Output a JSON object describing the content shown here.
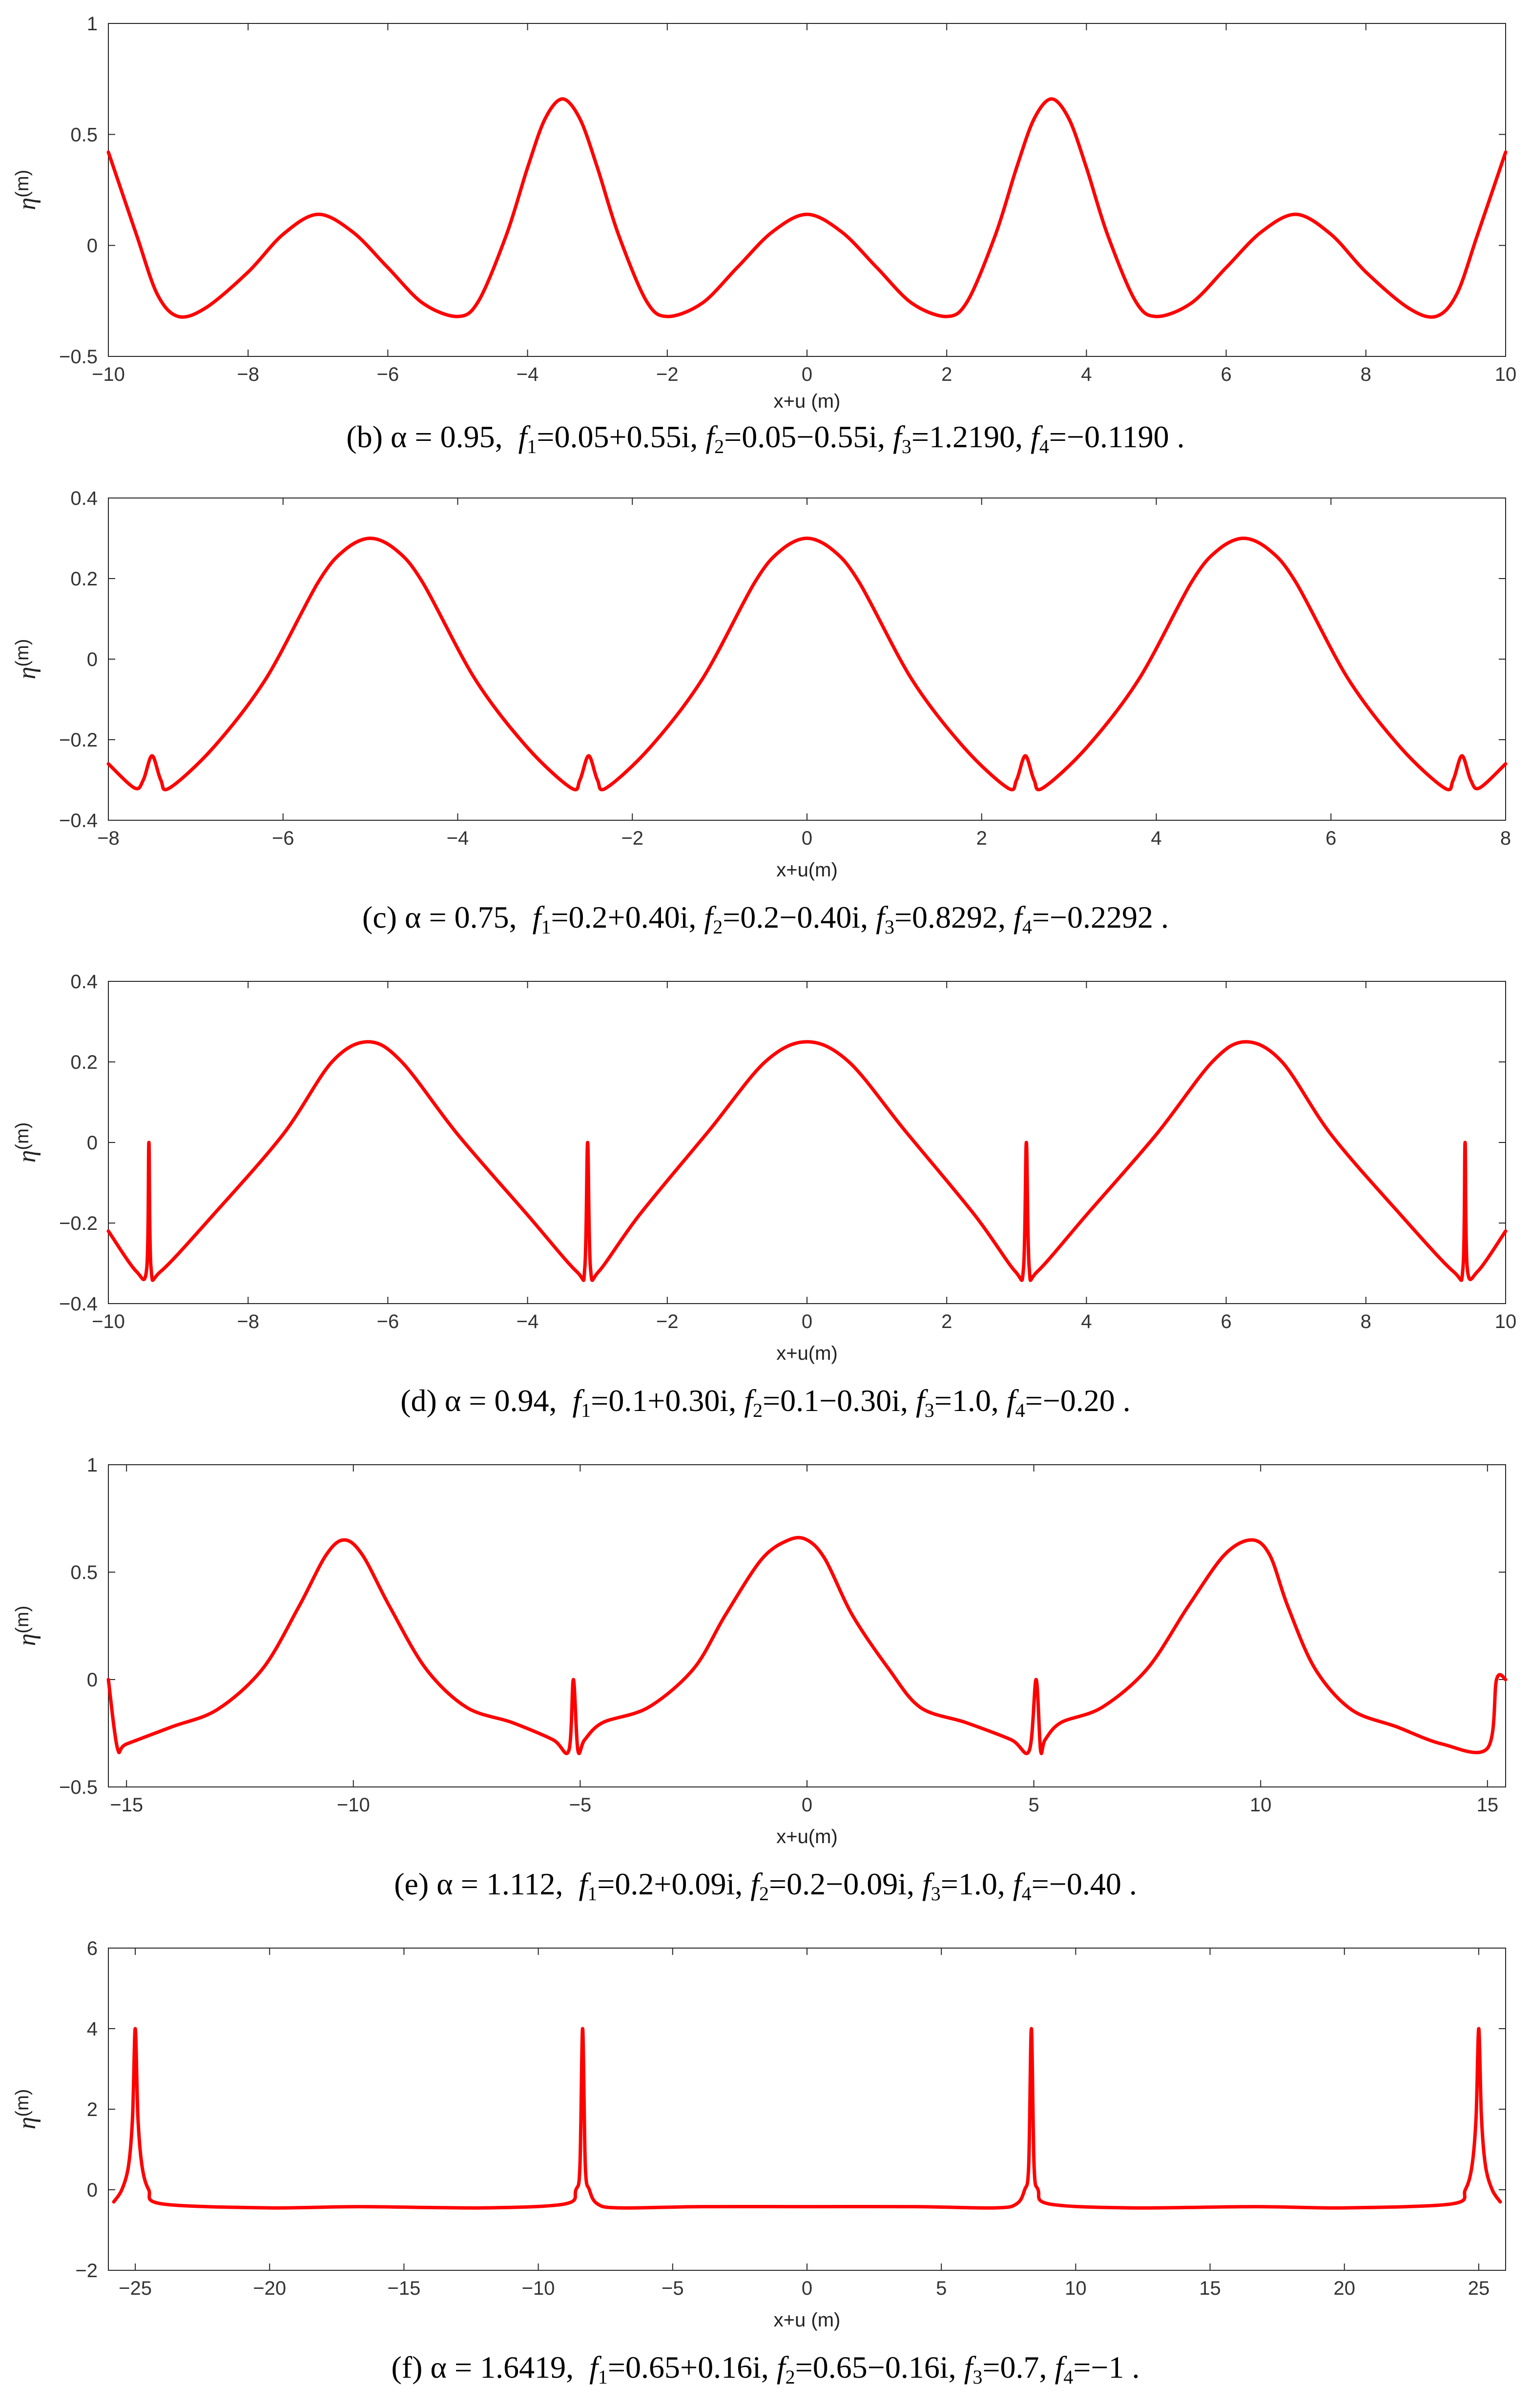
{
  "chart_data": [
    {
      "type": "line",
      "panel": "b",
      "xlim": [
        -10,
        10
      ],
      "ylim": [
        -0.5,
        1
      ],
      "xticks": [
        "−10",
        "−8",
        "−6",
        "−4",
        "−2",
        "0",
        "2",
        "4",
        "6",
        "8",
        "10"
      ],
      "yticks": [
        "−0.5",
        "0",
        "0.5",
        "1"
      ],
      "xlabel": "x+u (m)",
      "ylabel": "η",
      "ylabel_unit": "(m)",
      "color": "#ff0000",
      "series": [
        {
          "x": [
            -10,
            -9.6,
            -9.3,
            -9.0,
            -8.6,
            -8.0,
            -7.5,
            -7.0,
            -6.5,
            -6.0,
            -5.5,
            -5.0,
            -4.7,
            -4.3,
            -4.0,
            -3.75,
            -3.5,
            -3.25,
            -3.0,
            -2.7,
            -2.3,
            -2.0,
            -1.5,
            -1.0,
            -0.5,
            0,
            0.5,
            1.0,
            1.5,
            2.0,
            2.3,
            2.7,
            3.0,
            3.25,
            3.5,
            3.75,
            4.0,
            4.3,
            4.7,
            5.0,
            5.5,
            6.0,
            6.5,
            7.0,
            7.5,
            8.0,
            8.6,
            9.0,
            9.3,
            9.6,
            10
          ],
          "y": [
            0.42,
            0.05,
            -0.22,
            -0.32,
            -0.28,
            -0.12,
            0.05,
            0.14,
            0.06,
            -0.1,
            -0.26,
            -0.32,
            -0.25,
            0.05,
            0.35,
            0.57,
            0.66,
            0.57,
            0.35,
            0.05,
            -0.25,
            -0.32,
            -0.26,
            -0.1,
            0.06,
            0.14,
            0.06,
            -0.1,
            -0.26,
            -0.32,
            -0.25,
            0.05,
            0.35,
            0.57,
            0.66,
            0.57,
            0.35,
            0.05,
            -0.25,
            -0.32,
            -0.26,
            -0.1,
            0.06,
            0.14,
            0.05,
            -0.12,
            -0.28,
            -0.32,
            -0.22,
            0.05,
            0.42
          ]
        }
      ]
    },
    {
      "type": "line",
      "panel": "c",
      "xlim": [
        -8,
        8
      ],
      "ylim": [
        -0.4,
        0.4
      ],
      "xticks": [
        "−8",
        "−6",
        "−4",
        "−2",
        "0",
        "2",
        "4",
        "6",
        "8"
      ],
      "yticks": [
        "−0.4",
        "−0.2",
        "0",
        "0.2",
        "0.4"
      ],
      "xlabel": "x+u(m)",
      "ylabel": "η",
      "ylabel_unit": "(m)",
      "color": "#ff0000",
      "series": [
        {
          "x": [
            -8,
            -7.7,
            -7.6,
            -7.5,
            -7.4,
            -7.3,
            -6.8,
            -6.2,
            -5.6,
            -5.3,
            -5.0,
            -4.7,
            -4.4,
            -3.8,
            -3.2,
            -2.7,
            -2.6,
            -2.5,
            -2.4,
            -2.3,
            -1.8,
            -1.2,
            -0.6,
            -0.3,
            0,
            0.3,
            0.6,
            1.2,
            1.8,
            2.3,
            2.4,
            2.5,
            2.6,
            2.7,
            3.2,
            3.8,
            4.4,
            4.7,
            5.0,
            5.3,
            5.6,
            6.2,
            6.8,
            7.3,
            7.4,
            7.5,
            7.6,
            7.7,
            8
          ],
          "y": [
            -0.26,
            -0.32,
            -0.3,
            -0.24,
            -0.3,
            -0.32,
            -0.22,
            -0.05,
            0.19,
            0.27,
            0.3,
            0.27,
            0.19,
            -0.05,
            -0.22,
            -0.32,
            -0.3,
            -0.24,
            -0.3,
            -0.32,
            -0.22,
            -0.05,
            0.19,
            0.27,
            0.3,
            0.27,
            0.19,
            -0.05,
            -0.22,
            -0.32,
            -0.3,
            -0.24,
            -0.3,
            -0.32,
            -0.22,
            -0.05,
            0.19,
            0.27,
            0.3,
            0.27,
            0.19,
            -0.05,
            -0.22,
            -0.32,
            -0.3,
            -0.24,
            -0.3,
            -0.32,
            -0.26
          ]
        }
      ]
    },
    {
      "type": "line",
      "panel": "d",
      "xlim": [
        -10,
        10
      ],
      "ylim": [
        -0.4,
        0.4
      ],
      "xticks": [
        "−10",
        "−8",
        "−6",
        "−4",
        "−2",
        "0",
        "2",
        "4",
        "6",
        "8",
        "10"
      ],
      "yticks": [
        "−0.4",
        "−0.2",
        "0",
        "0.2",
        "0.4"
      ],
      "xlabel": "x+u(m)",
      "ylabel": "η",
      "ylabel_unit": "(m)",
      "color": "#ff0000",
      "series": [
        {
          "x": [
            -10,
            -9.6,
            -9.45,
            -9.42,
            -9.39,
            -9.25,
            -8.5,
            -7.5,
            -6.8,
            -6.28,
            -5.8,
            -5.0,
            -4.0,
            -3.3,
            -3.18,
            -3.14,
            -3.1,
            -2.98,
            -2.4,
            -1.4,
            -0.6,
            0,
            0.6,
            1.4,
            2.4,
            2.98,
            3.1,
            3.14,
            3.18,
            3.3,
            4.0,
            5.0,
            5.8,
            6.28,
            6.8,
            7.5,
            8.5,
            9.25,
            9.39,
            9.42,
            9.45,
            9.6,
            10
          ],
          "y": [
            -0.22,
            -0.32,
            -0.31,
            0.0,
            -0.31,
            -0.32,
            -0.18,
            0.02,
            0.2,
            0.25,
            0.2,
            0.02,
            -0.18,
            -0.32,
            -0.31,
            0.0,
            -0.31,
            -0.32,
            -0.18,
            0.03,
            0.2,
            0.25,
            0.2,
            0.03,
            -0.18,
            -0.32,
            -0.31,
            0.0,
            -0.31,
            -0.32,
            -0.18,
            0.02,
            0.2,
            0.25,
            0.2,
            0.02,
            -0.18,
            -0.32,
            -0.31,
            0.0,
            -0.31,
            -0.32,
            -0.22
          ]
        }
      ]
    },
    {
      "type": "line",
      "panel": "e",
      "xlim": [
        -15.4,
        15.4
      ],
      "ylim": [
        -0.5,
        1
      ],
      "xticks": [
        "−15",
        "−10",
        "−5",
        "0",
        "5",
        "10",
        "15"
      ],
      "yticks": [
        "−0.5",
        "0",
        "0.5",
        "1"
      ],
      "xlabel": "x+u(m)",
      "ylabel": "η",
      "ylabel_unit": "(m)",
      "color": "#ff0000",
      "series": [
        {
          "x": [
            -15.4,
            -15.2,
            -15.0,
            -14.0,
            -13.0,
            -12.0,
            -11.2,
            -10.6,
            -10.2,
            -9.8,
            -9.2,
            -8.4,
            -7.5,
            -6.5,
            -5.6,
            -5.25,
            -5.15,
            -5.05,
            -4.9,
            -4.5,
            -3.5,
            -2.5,
            -1.8,
            -1.0,
            -0.4,
            0,
            0.4,
            1.0,
            1.8,
            2.5,
            3.5,
            4.5,
            4.9,
            5.05,
            5.15,
            5.25,
            5.6,
            6.5,
            7.5,
            8.4,
            9.2,
            9.8,
            10.2,
            10.6,
            11.2,
            12.0,
            13.0,
            14.0,
            15.0,
            15.2,
            15.4
          ],
          "y": [
            0.0,
            -0.32,
            -0.3,
            -0.22,
            -0.14,
            0.05,
            0.34,
            0.58,
            0.65,
            0.58,
            0.34,
            0.05,
            -0.13,
            -0.2,
            -0.28,
            -0.33,
            0.0,
            -0.33,
            -0.28,
            -0.2,
            -0.13,
            0.05,
            0.3,
            0.56,
            0.65,
            0.65,
            0.56,
            0.3,
            0.05,
            -0.13,
            -0.2,
            -0.28,
            -0.33,
            0.0,
            -0.33,
            -0.28,
            -0.2,
            -0.13,
            0.05,
            0.34,
            0.58,
            0.65,
            0.58,
            0.34,
            0.05,
            -0.14,
            -0.22,
            -0.3,
            -0.32,
            0.0,
            0.0
          ]
        }
      ]
    },
    {
      "type": "line",
      "panel": "f",
      "xlim": [
        -26,
        26
      ],
      "ylim": [
        -2,
        6
      ],
      "xticks": [
        "−25",
        "−20",
        "−15",
        "−10",
        "−5",
        "0",
        "5",
        "10",
        "15",
        "20",
        "25"
      ],
      "yticks": [
        "−2",
        "0",
        "2",
        "4",
        "6"
      ],
      "xlabel": "x+u (m)",
      "ylabel": "η",
      "ylabel_unit": "(m)",
      "color": "#ff0000",
      "series": [
        {
          "x": [
            -25.8,
            -25.5,
            -25.25,
            -25.1,
            -25.0,
            -24.9,
            -24.75,
            -24.5,
            -24.0,
            -20,
            -16.7,
            -12,
            -9.0,
            -8.6,
            -8.45,
            -8.35,
            -8.25,
            -8.1,
            -7.8,
            -7.0,
            -4,
            0,
            4,
            7.0,
            7.8,
            8.1,
            8.25,
            8.35,
            8.45,
            8.6,
            9.0,
            12,
            16.7,
            20,
            24.0,
            24.5,
            24.75,
            24.9,
            25.0,
            25.1,
            25.25,
            25.5,
            25.8
          ],
          "y": [
            -0.3,
            0.0,
            0.6,
            1.8,
            4.0,
            1.8,
            0.6,
            0.0,
            -0.35,
            -0.45,
            -0.42,
            -0.45,
            -0.35,
            0.0,
            0.6,
            4.0,
            0.6,
            0.0,
            -0.35,
            -0.45,
            -0.42,
            -0.42,
            -0.42,
            -0.45,
            -0.35,
            0.0,
            0.6,
            4.0,
            0.6,
            0.0,
            -0.35,
            -0.45,
            -0.42,
            -0.45,
            -0.35,
            0.0,
            0.6,
            1.8,
            4.0,
            1.8,
            0.6,
            0.0,
            -0.3
          ]
        }
      ]
    }
  ],
  "captions": [
    {
      "label": "(b)",
      "alpha": "α = 0.95,",
      "f1": "=0.05+0.55i,",
      "f2": "=0.05−0.55i,",
      "f3": "=1.2190,",
      "f4": "=−0.1190 ."
    },
    {
      "label": "(c)",
      "alpha": "α = 0.75,",
      "f1": "=0.2+0.40i,",
      "f2": "=0.2−0.40i,",
      "f3": "=0.8292,",
      "f4": "=−0.2292 ."
    },
    {
      "label": "(d)",
      "alpha": "α = 0.94,",
      "f1": "=0.1+0.30i,",
      "f2": "=0.1−0.30i,",
      "f3": "=1.0,",
      "f4": "=−0.20 ."
    },
    {
      "label": "(e)",
      "alpha": "α = 1.112,",
      "f1": "=0.2+0.09i,",
      "f2": "=0.2−0.09i,",
      "f3": "=1.0,",
      "f4": "=−0.40 ."
    },
    {
      "label": "(f)",
      "alpha": "α = 1.6419,",
      "f1": "=0.65+0.16i,",
      "f2": "=0.65−0.16i,",
      "f3": "=0.7,",
      "f4": "=−1 ."
    }
  ]
}
